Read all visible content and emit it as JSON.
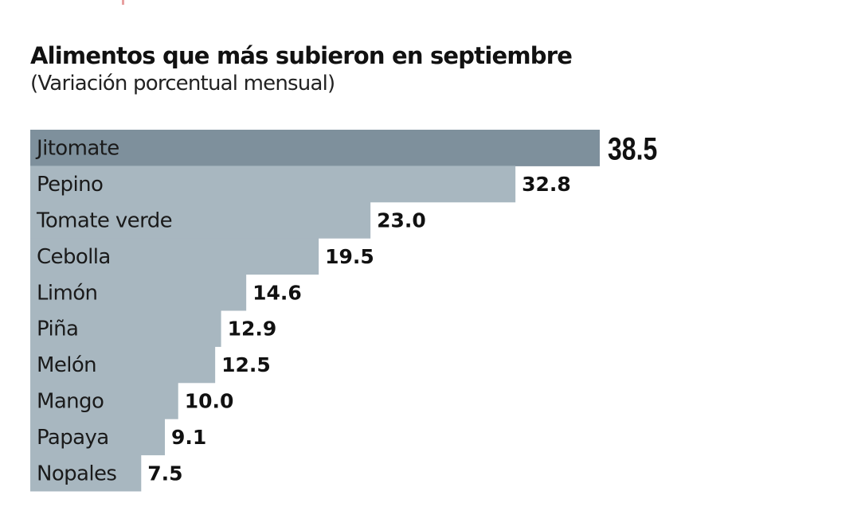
{
  "chart_data": {
    "type": "bar",
    "orientation": "horizontal",
    "title": "Alimentos que más subieron en septiembre",
    "subtitle": "(Variación porcentual mensual)",
    "categories": [
      "Jitomate",
      "Pepino",
      "Tomate verde",
      "Cebolla",
      "Limón",
      "Piña",
      "Melón",
      "Mango",
      "Papaya",
      "Nopales"
    ],
    "values": [
      38.5,
      32.8,
      23.0,
      19.5,
      14.6,
      12.9,
      12.5,
      10.0,
      9.1,
      7.5
    ],
    "value_labels": [
      "38.5",
      "32.8",
      "23.0",
      "19.5",
      "14.6",
      "12.9",
      "12.5",
      "10.0",
      "9.1",
      "7.5"
    ],
    "highlight_color": "#7e909c",
    "bar_color": "#a8b7c0",
    "grid": false
  }
}
